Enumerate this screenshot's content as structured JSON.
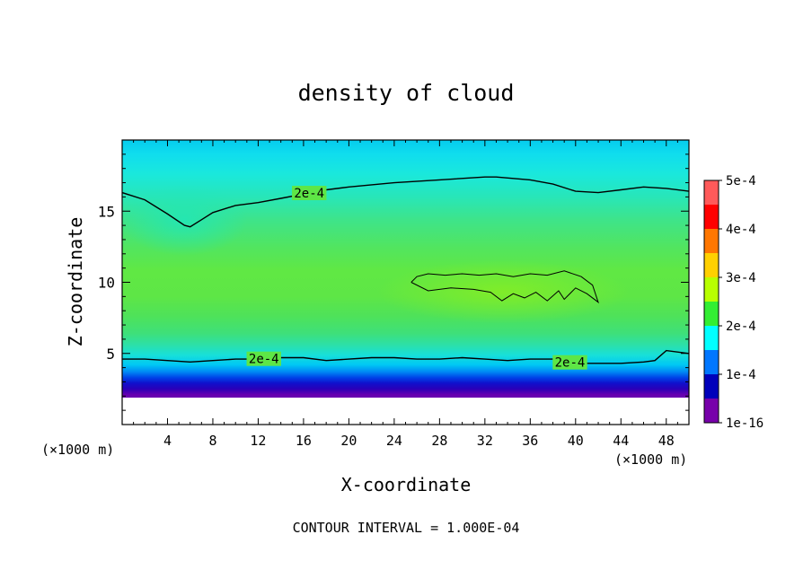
{
  "chart_data": {
    "type": "heatmap",
    "title": "density of cloud",
    "xlabel": "X-coordinate",
    "ylabel": "Z-coordinate",
    "x_unit_left": "(×1000 m)",
    "x_unit_right": "(×1000 m)",
    "xlim": [
      0,
      50
    ],
    "ylim": [
      0,
      20
    ],
    "x_ticks": [
      "4",
      "8",
      "12",
      "16",
      "20",
      "24",
      "28",
      "32",
      "36",
      "40",
      "44",
      "48"
    ],
    "x_tick_values": [
      4,
      8,
      12,
      16,
      20,
      24,
      28,
      32,
      36,
      40,
      44,
      48
    ],
    "y_ticks": [
      "5",
      "10",
      "15"
    ],
    "y_tick_values": [
      5,
      10,
      15
    ],
    "footer": "CONTOUR INTERVAL = 1.000E-04",
    "colorbar": {
      "labels": [
        "5e-4",
        "4e-4",
        "3e-4",
        "2e-4",
        "1e-4",
        "1e-16"
      ],
      "values": [
        0.0005,
        0.0004,
        0.0003,
        0.0002,
        0.0001,
        1e-16
      ],
      "colors": [
        "#ff5a5a",
        "#ff0000",
        "#ff7700",
        "#ffd000",
        "#b8ff00",
        "#33ee33",
        "#00ffff",
        "#0077ff",
        "#0000bb",
        "#7700aa"
      ]
    },
    "contours": [
      {
        "level": "2e-4",
        "labels": [
          {
            "text": "2e-4",
            "x": 16.5
          }
        ],
        "x": [
          0,
          2,
          4,
          5.5,
          6,
          7,
          8,
          10,
          12,
          14,
          16,
          18,
          20,
          24,
          28,
          32,
          33,
          36,
          38,
          40,
          42,
          44,
          46,
          48,
          50
        ],
        "z": [
          16.3,
          15.8,
          14.8,
          14.0,
          13.9,
          14.4,
          14.9,
          15.4,
          15.6,
          15.9,
          16.2,
          16.5,
          16.7,
          17.0,
          17.2,
          17.4,
          17.4,
          17.2,
          16.9,
          16.4,
          16.3,
          16.5,
          16.7,
          16.6,
          16.4
        ]
      },
      {
        "level": "2e-4",
        "labels": [
          {
            "text": "2e-4",
            "x": 12.5
          },
          {
            "text": "2e-4",
            "x": 39.5
          }
        ],
        "x": [
          0,
          2,
          4,
          6,
          8,
          10,
          12,
          14,
          16,
          18,
          20,
          22,
          24,
          26,
          28,
          30,
          32,
          34,
          36,
          38,
          40,
          42,
          44,
          46,
          47,
          48,
          50
        ],
        "z": [
          4.6,
          4.6,
          4.5,
          4.4,
          4.5,
          4.6,
          4.6,
          4.7,
          4.7,
          4.5,
          4.6,
          4.7,
          4.7,
          4.6,
          4.6,
          4.7,
          4.6,
          4.5,
          4.6,
          4.6,
          4.3,
          4.3,
          4.3,
          4.4,
          4.5,
          5.2,
          5.0
        ]
      },
      {
        "level": "",
        "labels": [],
        "x": [
          25.5,
          26,
          27,
          28.5,
          30,
          31.5,
          33,
          34.5,
          36,
          37.5,
          39,
          40.5,
          41.5,
          42,
          41,
          40,
          39,
          38.5,
          37.5,
          36.5,
          35.5,
          34.5,
          33.5,
          32.5,
          31,
          29,
          27,
          25.5
        ],
        "z": [
          10.0,
          10.4,
          10.6,
          10.5,
          10.6,
          10.5,
          10.6,
          10.4,
          10.6,
          10.5,
          10.8,
          10.4,
          9.8,
          8.6,
          9.2,
          9.6,
          8.8,
          9.4,
          8.7,
          9.3,
          8.9,
          9.2,
          8.7,
          9.3,
          9.5,
          9.6,
          9.4,
          10.0
        ]
      }
    ]
  }
}
